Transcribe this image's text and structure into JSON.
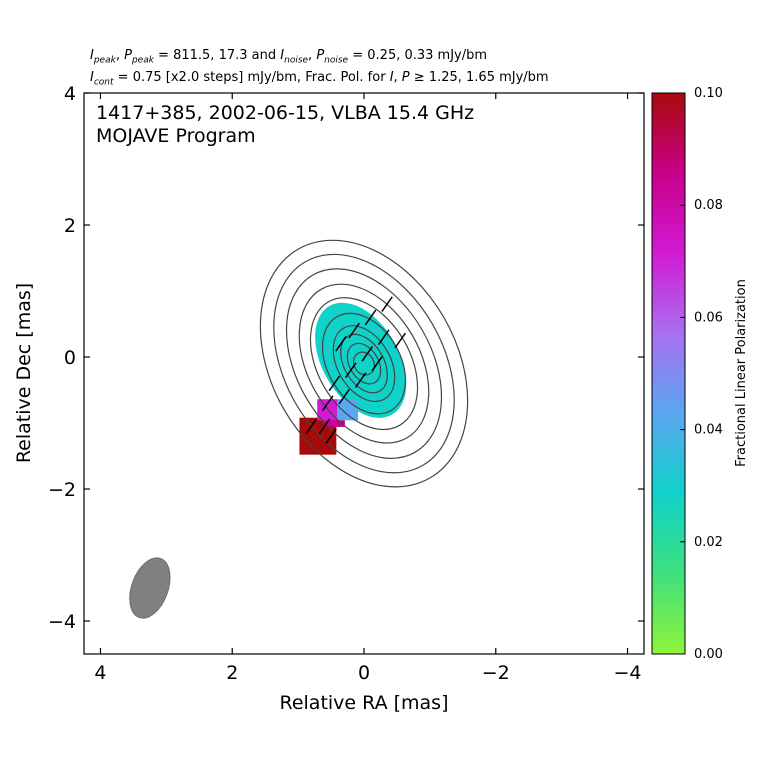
{
  "header": {
    "line1_peak_values": "811.5, 17.3",
    "line1_noise_values": "0.25, 0.33 mJy/bm",
    "line2_cont_value": "0.75 [x2.0 steps] mJy/bm, Frac. Pol. for",
    "line2_frac_values": "1.25, 1.65 mJy/bm"
  },
  "chart_data": {
    "type": "heatmap",
    "title": "1417+385, 2002-06-15, VLBA 15.4 GHz",
    "subtitle": "MOJAVE Program",
    "xlabel": "Relative RA [mas]",
    "ylabel": "Relative Dec [mas]",
    "xlim": [
      4.25,
      -4.25
    ],
    "ylim": [
      -4.5,
      4.0
    ],
    "xticks": [
      4,
      2,
      0,
      -2,
      -4
    ],
    "yticks": [
      4,
      2,
      0,
      -2,
      -4
    ],
    "x_tick_labels": [
      "4",
      "2",
      "0",
      "−2",
      "−4"
    ],
    "y_tick_labels": [
      "4",
      "2",
      "0",
      "−2",
      "−4"
    ],
    "colorbar": {
      "label": "Fractional Linear Polarization",
      "range": [
        0.0,
        0.1
      ],
      "ticks": [
        0.0,
        0.02,
        0.04,
        0.06,
        0.08,
        0.1
      ],
      "tick_labels": [
        "0.00",
        "0.02",
        "0.04",
        "0.06",
        "0.08",
        "0.10"
      ],
      "colors": [
        "#8ef43a",
        "#3ee07e",
        "#0fd2c8",
        "#5aa6f0",
        "#a870f0",
        "#d21ad2",
        "#c8008a",
        "#a80a0a"
      ]
    },
    "contours": {
      "center": [
        0.0,
        -0.1
      ],
      "levels": [
        {
          "a": 0.18,
          "b": 0.15
        },
        {
          "a": 0.33,
          "b": 0.22
        },
        {
          "a": 0.48,
          "b": 0.3
        },
        {
          "a": 0.62,
          "b": 0.4
        },
        {
          "a": 0.82,
          "b": 0.55
        },
        {
          "a": 1.08,
          "b": 0.7
        },
        {
          "a": 1.3,
          "b": 0.85
        },
        {
          "a": 1.55,
          "b": 1.02
        },
        {
          "a": 1.78,
          "b": 1.2
        },
        {
          "a": 2.0,
          "b": 1.4
        }
      ],
      "rotation_deg": -30,
      "color": "#444444"
    },
    "polarization_pixels": [
      {
        "ra": 0.1,
        "dec": 0.0,
        "frac": 0.022
      },
      {
        "ra": 0.7,
        "dec": -1.2,
        "frac": 0.1
      },
      {
        "ra": 0.45,
        "dec": -0.9,
        "frac": 0.085
      },
      {
        "ra": 0.55,
        "dec": -0.8,
        "frac": 0.065
      },
      {
        "ra": 0.25,
        "dec": -0.8,
        "frac": 0.04
      }
    ],
    "evpa_vectors": [
      {
        "ra": -0.35,
        "dec": 0.8
      },
      {
        "ra": -0.1,
        "dec": 0.6
      },
      {
        "ra": 0.15,
        "dec": 0.4
      },
      {
        "ra": 0.35,
        "dec": 0.2
      },
      {
        "ra": -0.3,
        "dec": 0.3
      },
      {
        "ra": -0.05,
        "dec": 0.05
      },
      {
        "ra": 0.2,
        "dec": -0.2
      },
      {
        "ra": 0.45,
        "dec": -0.4
      },
      {
        "ra": -0.55,
        "dec": 0.25
      },
      {
        "ra": -0.2,
        "dec": -0.1
      },
      {
        "ra": 0.05,
        "dec": -0.35
      },
      {
        "ra": 0.3,
        "dec": -0.6
      },
      {
        "ra": 0.55,
        "dec": -0.7
      },
      {
        "ra": 0.8,
        "dec": -1.05
      },
      {
        "ra": 0.6,
        "dec": -1.05
      },
      {
        "ra": 0.5,
        "dec": -1.2
      }
    ],
    "beam": {
      "ra": 3.25,
      "dec": -3.5,
      "major_mas": 0.95,
      "minor_mas": 0.55,
      "pa_deg": -20
    }
  }
}
